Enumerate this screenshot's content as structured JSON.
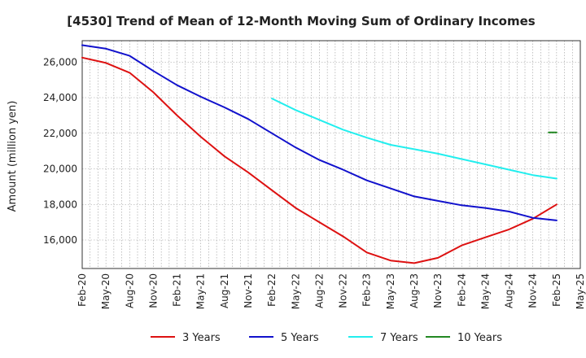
{
  "chart_data": {
    "type": "line",
    "title": "[4530]  Trend of Mean of 12-Month Moving Sum of Ordinary Incomes",
    "xlabel": "",
    "ylabel": "Amount (million yen)",
    "ylim": [
      14400,
      27200
    ],
    "yticks": [
      16000,
      18000,
      20000,
      22000,
      24000,
      26000
    ],
    "ytick_labels": [
      "16,000",
      "18,000",
      "20,000",
      "22,000",
      "24,000",
      "26,000"
    ],
    "x_start": "Feb-20",
    "x_end": "May-25",
    "xticks": [
      0,
      3,
      6,
      9,
      12,
      15,
      18,
      21,
      24,
      27,
      30,
      33,
      36,
      39,
      42,
      45,
      48,
      51,
      54,
      57,
      60,
      63
    ],
    "xtick_labels": [
      "Feb-20",
      "May-20",
      "Aug-20",
      "Nov-20",
      "Feb-21",
      "May-21",
      "Aug-21",
      "Nov-21",
      "Feb-22",
      "May-22",
      "Aug-22",
      "Nov-22",
      "Feb-23",
      "May-23",
      "Aug-23",
      "Nov-23",
      "Feb-24",
      "May-24",
      "Aug-24",
      "Nov-24",
      "Feb-25",
      "May-25"
    ],
    "grid": true,
    "legend_position": "bottom",
    "series": [
      {
        "name": "3 Years",
        "color": "#dd1111",
        "points": [
          [
            0,
            26250
          ],
          [
            3,
            25950
          ],
          [
            6,
            25400
          ],
          [
            9,
            24300
          ],
          [
            12,
            23000
          ],
          [
            15,
            21800
          ],
          [
            18,
            20700
          ],
          [
            21,
            19800
          ],
          [
            24,
            18800
          ],
          [
            27,
            17800
          ],
          [
            30,
            17000
          ],
          [
            33,
            16200
          ],
          [
            36,
            15300
          ],
          [
            39,
            14850
          ],
          [
            42,
            14700
          ],
          [
            45,
            15000
          ],
          [
            48,
            15700
          ],
          [
            51,
            16150
          ],
          [
            54,
            16600
          ],
          [
            57,
            17200
          ],
          [
            60,
            18000
          ]
        ]
      },
      {
        "name": "5 Years",
        "color": "#1111cc",
        "points": [
          [
            0,
            26950
          ],
          [
            3,
            26750
          ],
          [
            6,
            26350
          ],
          [
            9,
            25500
          ],
          [
            12,
            24700
          ],
          [
            15,
            24050
          ],
          [
            18,
            23450
          ],
          [
            21,
            22800
          ],
          [
            24,
            22000
          ],
          [
            27,
            21200
          ],
          [
            30,
            20500
          ],
          [
            33,
            19950
          ],
          [
            36,
            19350
          ],
          [
            39,
            18900
          ],
          [
            42,
            18450
          ],
          [
            45,
            18200
          ],
          [
            48,
            17950
          ],
          [
            51,
            17800
          ],
          [
            54,
            17600
          ],
          [
            57,
            17250
          ],
          [
            60,
            17100
          ]
        ]
      },
      {
        "name": "7 Years",
        "color": "#22eeee",
        "points": [
          [
            24,
            23950
          ],
          [
            27,
            23300
          ],
          [
            30,
            22750
          ],
          [
            33,
            22200
          ],
          [
            36,
            21750
          ],
          [
            39,
            21350
          ],
          [
            42,
            21100
          ],
          [
            45,
            20850
          ],
          [
            48,
            20550
          ],
          [
            51,
            20250
          ],
          [
            54,
            19950
          ],
          [
            57,
            19650
          ],
          [
            60,
            19450
          ]
        ]
      },
      {
        "name": "10 Years",
        "color": "#228822",
        "points": [
          [
            59,
            22050
          ],
          [
            60,
            22050
          ]
        ]
      }
    ]
  }
}
